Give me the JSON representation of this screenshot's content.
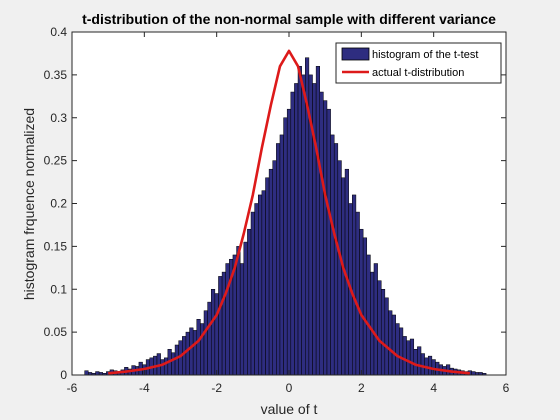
{
  "chart_data": {
    "type": "bar",
    "title": "t-distribution of the non-normal sample with different variance",
    "xlabel": "value of t",
    "ylabel": "histogram frquence normalized",
    "xlim": [
      -6,
      6
    ],
    "ylim": [
      0,
      0.4
    ],
    "xticks": [
      -6,
      -4,
      -2,
      0,
      2,
      4,
      6
    ],
    "yticks": [
      0,
      0.05,
      0.1,
      0.15,
      0.2,
      0.25,
      0.3,
      0.35,
      0.4
    ],
    "xtick_labels": [
      "-6",
      "-4",
      "-2",
      "0",
      "2",
      "4",
      "6"
    ],
    "ytick_labels": [
      "0",
      "0.05",
      "0.1",
      "0.15",
      "0.2",
      "0.25",
      "0.3",
      "0.35",
      "0.4"
    ],
    "grid": false,
    "legend_position": "top-right",
    "series": [
      {
        "name": "histogram of the t-test",
        "type": "histogram",
        "bin_width": 0.1,
        "x": [
          -5.6,
          -5.5,
          -5.4,
          -5.3,
          -5.2,
          -5.1,
          -5.0,
          -4.9,
          -4.8,
          -4.7,
          -4.6,
          -4.5,
          -4.4,
          -4.3,
          -4.2,
          -4.1,
          -4.0,
          -3.9,
          -3.8,
          -3.7,
          -3.6,
          -3.5,
          -3.4,
          -3.3,
          -3.2,
          -3.1,
          -3.0,
          -2.9,
          -2.8,
          -2.7,
          -2.6,
          -2.5,
          -2.4,
          -2.3,
          -2.2,
          -2.1,
          -2.0,
          -1.9,
          -1.8,
          -1.7,
          -1.6,
          -1.5,
          -1.4,
          -1.3,
          -1.2,
          -1.1,
          -1.0,
          -0.9,
          -0.8,
          -0.7,
          -0.6,
          -0.5,
          -0.4,
          -0.3,
          -0.2,
          -0.1,
          0.0,
          0.1,
          0.2,
          0.3,
          0.4,
          0.5,
          0.6,
          0.7,
          0.8,
          0.9,
          1.0,
          1.1,
          1.2,
          1.3,
          1.4,
          1.5,
          1.6,
          1.7,
          1.8,
          1.9,
          2.0,
          2.1,
          2.2,
          2.3,
          2.4,
          2.5,
          2.6,
          2.7,
          2.8,
          2.9,
          3.0,
          3.1,
          3.2,
          3.3,
          3.4,
          3.5,
          3.6,
          3.7,
          3.8,
          3.9,
          4.0,
          4.1,
          4.2,
          4.3,
          4.4,
          4.5,
          4.6,
          4.7,
          4.8,
          4.9,
          5.0,
          5.1,
          5.2,
          5.3,
          5.4
        ],
        "values": [
          0.005,
          0.003,
          0.002,
          0.004,
          0.003,
          0.002,
          0.004,
          0.006,
          0.005,
          0.003,
          0.006,
          0.009,
          0.007,
          0.011,
          0.01,
          0.015,
          0.012,
          0.018,
          0.02,
          0.022,
          0.025,
          0.018,
          0.02,
          0.03,
          0.026,
          0.035,
          0.04,
          0.045,
          0.05,
          0.055,
          0.052,
          0.065,
          0.06,
          0.075,
          0.085,
          0.1,
          0.095,
          0.115,
          0.12,
          0.13,
          0.135,
          0.14,
          0.15,
          0.13,
          0.155,
          0.17,
          0.19,
          0.2,
          0.21,
          0.215,
          0.23,
          0.24,
          0.25,
          0.27,
          0.28,
          0.3,
          0.31,
          0.33,
          0.34,
          0.36,
          0.35,
          0.37,
          0.35,
          0.34,
          0.36,
          0.33,
          0.32,
          0.31,
          0.28,
          0.27,
          0.25,
          0.23,
          0.24,
          0.2,
          0.21,
          0.19,
          0.17,
          0.16,
          0.14,
          0.12,
          0.13,
          0.11,
          0.1,
          0.09,
          0.075,
          0.07,
          0.06,
          0.055,
          0.045,
          0.04,
          0.042,
          0.03,
          0.033,
          0.025,
          0.02,
          0.022,
          0.018,
          0.015,
          0.012,
          0.01,
          0.012,
          0.008,
          0.007,
          0.006,
          0.005,
          0.004,
          0.005,
          0.004,
          0.003,
          0.003,
          0.002
        ],
        "color": "#2e2d80"
      },
      {
        "name": "actual t-distribution",
        "type": "line",
        "x": [
          -5.0,
          -4.5,
          -4.0,
          -3.5,
          -3.0,
          -2.5,
          -2.0,
          -1.75,
          -1.5,
          -1.25,
          -1.0,
          -0.75,
          -0.5,
          -0.25,
          0.0,
          0.25,
          0.5,
          0.75,
          1.0,
          1.25,
          1.5,
          1.75,
          2.0,
          2.5,
          3.0,
          3.5,
          4.0,
          4.5,
          5.0
        ],
        "values": [
          0.002,
          0.004,
          0.007,
          0.012,
          0.022,
          0.04,
          0.07,
          0.095,
          0.125,
          0.165,
          0.21,
          0.265,
          0.315,
          0.36,
          0.378,
          0.36,
          0.315,
          0.265,
          0.21,
          0.165,
          0.125,
          0.095,
          0.07,
          0.04,
          0.022,
          0.012,
          0.007,
          0.004,
          0.002
        ],
        "color": "#dd1a1a"
      }
    ]
  }
}
